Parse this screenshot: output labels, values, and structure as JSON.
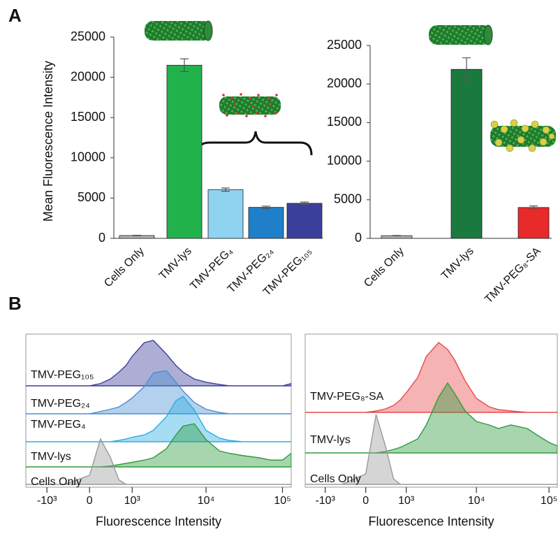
{
  "panels": [
    "A",
    "B"
  ],
  "chart_data": [
    {
      "type": "bar",
      "ylabel": "Mean Fluorescence Intensity",
      "categories": [
        "Cells Only",
        "TMV-lys",
        "TMV-PEG₄",
        "TMV-PEG₂₄",
        "TMV-PEG₁₀₅"
      ],
      "values": [
        350,
        21500,
        6050,
        3850,
        4350
      ],
      "errors": [
        30,
        800,
        200,
        150,
        150
      ],
      "colors": [
        "#b3b3b3",
        "#22b24c",
        "#8fd3f0",
        "#1f7fc8",
        "#3b3f9c"
      ],
      "ylim": [
        0,
        25000
      ],
      "yticks": [
        0,
        5000,
        10000,
        15000,
        20000,
        25000
      ]
    },
    {
      "type": "bar",
      "categories": [
        "Cells Only",
        "TMV-lys",
        "TMV-PEG₈-SA"
      ],
      "values": [
        350,
        21900,
        4000
      ],
      "errors": [
        30,
        1500,
        200
      ],
      "colors": [
        "#b3b3b3",
        "#1a7a3e",
        "#e82a2a"
      ],
      "ylim": [
        0,
        25000
      ],
      "yticks": [
        0,
        5000,
        10000,
        15000,
        20000,
        25000
      ]
    },
    {
      "type": "ridgeline",
      "xlabel": "Fluorescence Intensity",
      "xscale": "biexponential",
      "x": [
        -2000,
        -1000,
        -500,
        0,
        200,
        400,
        600,
        800,
        1000,
        1500,
        2000,
        3000,
        4000,
        5000,
        7000,
        10000,
        15000,
        20000,
        30000,
        50000,
        70000,
        100000,
        130000
      ],
      "series": [
        {
          "name": "TMV-PEG₁₀₅",
          "color": "#3d3f9c",
          "values": [
            0,
            0,
            0,
            0,
            5,
            15,
            30,
            45,
            65,
            95,
            100,
            70,
            45,
            30,
            15,
            8,
            3,
            0,
            0,
            0,
            0,
            0,
            5
          ]
        },
        {
          "name": "TMV-PEG₂₄",
          "color": "#4a8fd4",
          "values": [
            0,
            0,
            0,
            0,
            5,
            10,
            15,
            25,
            35,
            60,
            90,
            95,
            70,
            50,
            25,
            10,
            3,
            0,
            0,
            0,
            0,
            0,
            0
          ]
        },
        {
          "name": "TMV-PEG₄",
          "color": "#2aaee3",
          "values": [
            0,
            0,
            0,
            0,
            0,
            0,
            3,
            6,
            10,
            15,
            25,
            55,
            90,
            100,
            70,
            25,
            8,
            3,
            0,
            0,
            0,
            0,
            0
          ]
        },
        {
          "name": "TMV-lys",
          "color": "#2e9a3e",
          "values": [
            0,
            0,
            0,
            0,
            0,
            2,
            5,
            8,
            10,
            15,
            20,
            40,
            70,
            90,
            95,
            60,
            35,
            30,
            25,
            20,
            15,
            15,
            30
          ]
        },
        {
          "name": "Cells Only",
          "color": "#9a9a9a",
          "values": [
            0,
            0,
            0,
            20,
            100,
            60,
            10,
            0,
            0,
            0,
            0,
            0,
            0,
            0,
            0,
            0,
            0,
            0,
            0,
            0,
            0,
            0,
            0
          ]
        }
      ],
      "xlim": [
        -2000,
        130000
      ],
      "xticks": [
        {
          "value": -1000,
          "label": "-10³"
        },
        0,
        {
          "value": 1000,
          "label": "10³"
        },
        {
          "value": 10000,
          "label": "10⁴"
        },
        {
          "value": 100000,
          "label": "10⁵"
        }
      ]
    },
    {
      "type": "ridgeline",
      "xlabel": "Fluorescence Intensity",
      "xscale": "biexponential",
      "x": [
        -2000,
        -1000,
        -500,
        0,
        200,
        400,
        600,
        800,
        1000,
        1500,
        2000,
        3000,
        4000,
        5000,
        7000,
        10000,
        15000,
        20000,
        30000,
        50000,
        70000,
        100000,
        130000
      ],
      "series": [
        {
          "name": "TMV-PEG₈-SA",
          "color": "#e84a4a",
          "values": [
            0,
            0,
            0,
            0,
            2,
            5,
            10,
            18,
            28,
            50,
            80,
            100,
            90,
            75,
            45,
            20,
            8,
            4,
            2,
            0,
            0,
            0,
            0
          ]
        },
        {
          "name": "TMV-lys",
          "color": "#2e9a3e",
          "values": [
            0,
            0,
            0,
            0,
            0,
            2,
            5,
            8,
            12,
            20,
            40,
            80,
            100,
            85,
            60,
            45,
            40,
            35,
            40,
            35,
            25,
            15,
            10
          ]
        },
        {
          "name": "Cells Only",
          "color": "#9a9a9a",
          "values": [
            0,
            0,
            0,
            15,
            100,
            55,
            8,
            0,
            0,
            0,
            0,
            0,
            0,
            0,
            0,
            0,
            0,
            0,
            0,
            0,
            0,
            0,
            0
          ]
        }
      ],
      "xlim": [
        -2000,
        130000
      ],
      "xticks": [
        {
          "value": -1000,
          "label": "-10³"
        },
        0,
        {
          "value": 1000,
          "label": "10³"
        },
        {
          "value": 10000,
          "label": "10⁴"
        },
        {
          "value": 100000,
          "label": "10⁵"
        }
      ]
    }
  ]
}
